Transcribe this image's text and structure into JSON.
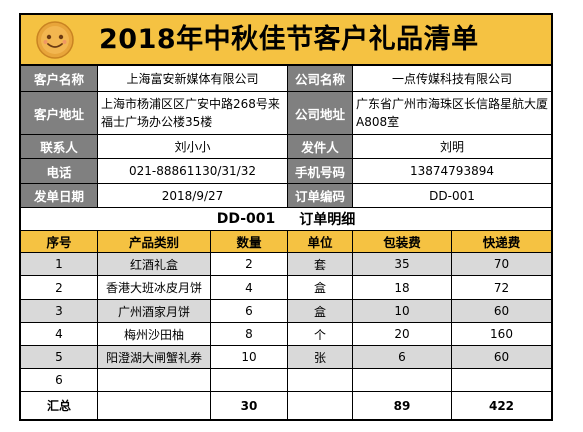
{
  "title": "2018年中秋佳节客户礼品清单",
  "info": {
    "customer_name_label": "客户名称",
    "customer_name": "上海富安新媒体有限公司",
    "company_name_label": "公司名称",
    "company_name": "一点传媒科技有限公司",
    "customer_address_label": "客户地址",
    "customer_address": "上海市杨浦区区广安中路268号来福士广场办公楼35楼",
    "company_address_label": "公司地址",
    "company_address": "广东省广州市海珠区长信路星航大厦A808室",
    "contact_label": "联系人",
    "contact": "刘小小",
    "sender_label": "发件人",
    "sender": "刘明",
    "phone_label": "电话",
    "phone": "021-88861130/31/32",
    "mobile_label": "手机号码",
    "mobile": "13874793894",
    "ship_date_label": "发单日期",
    "ship_date": "2018/9/27",
    "order_no_label": "订单编码",
    "order_no": "DD-001"
  },
  "order_detail": {
    "heading_code": "DD-001",
    "heading_text": "订单明细"
  },
  "table": {
    "headers": {
      "no": "序号",
      "category": "产品类别",
      "qty": "数量",
      "unit": "单位",
      "packaging": "包装费",
      "shipping": "快递费"
    },
    "rows": [
      {
        "no": "1",
        "category": "红酒礼盒",
        "qty": "2",
        "unit": "套",
        "packaging": "35",
        "shipping": "70"
      },
      {
        "no": "2",
        "category": "香港大班冰皮月饼",
        "qty": "4",
        "unit": "盒",
        "packaging": "18",
        "shipping": "72"
      },
      {
        "no": "3",
        "category": "广州酒家月饼",
        "qty": "6",
        "unit": "盒",
        "packaging": "10",
        "shipping": "60"
      },
      {
        "no": "4",
        "category": "梅州沙田柚",
        "qty": "8",
        "unit": "个",
        "packaging": "20",
        "shipping": "160"
      },
      {
        "no": "5",
        "category": "阳澄湖大闸蟹礼券",
        "qty": "10",
        "unit": "张",
        "packaging": "6",
        "shipping": "60"
      },
      {
        "no": "6",
        "category": "",
        "qty": "",
        "unit": "",
        "packaging": "",
        "shipping": ""
      }
    ],
    "total": {
      "label": "汇总",
      "qty": "30",
      "packaging": "89",
      "shipping": "422"
    }
  },
  "colors": {
    "accent": "#f5c242",
    "label_gray": "#808080",
    "row_gray": "#d9d9d9"
  },
  "icons": {
    "logo": "mooncake-icon"
  }
}
